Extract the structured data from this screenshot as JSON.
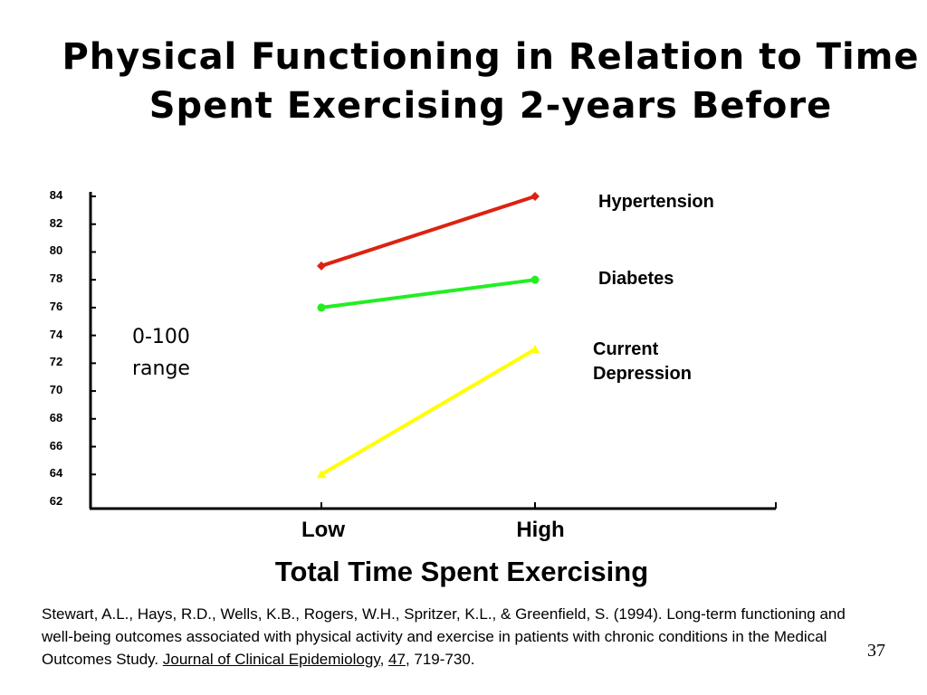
{
  "slide": {
    "title_line_1": "Physical Functioning in Relation to Time",
    "title_line_2": "Spent Exercising 2-years Before",
    "range_note_line_1": "0-100",
    "range_note_line_2": "range",
    "page_number": "37"
  },
  "citation": {
    "text_1": "Stewart, A.L., Hays, R.D., Wells, K.B., Rogers, W.H., Spritzer, K.L., & Greenfield, S.  (1994).  Long-term functioning and well-being outcomes associated with physical activity and exercise in patients with chronic conditions in the Medical Outcomes Study.  ",
    "journal": "Journal of Clinical Epidemiology",
    "sep_1": ", ",
    "volume": "47",
    "pages": ", 719-730."
  },
  "chart_data": {
    "type": "line",
    "title": "",
    "xlabel": "Total Time Spent Exercising",
    "ylabel": "",
    "categories": [
      "Low",
      "High"
    ],
    "ylim": [
      62,
      84
    ],
    "yticks": [
      "84",
      "82",
      "80",
      "78",
      "76",
      "74",
      "72",
      "70",
      "68",
      "66",
      "64",
      "62"
    ],
    "grid": false,
    "series": [
      {
        "name": "Hypertension",
        "values": [
          79,
          84
        ],
        "color": "#dd2211",
        "marker": "diamond"
      },
      {
        "name": "Diabetes",
        "values": [
          76,
          78
        ],
        "color": "#22ee22",
        "marker": "circle"
      },
      {
        "name": "Current Depression",
        "values": [
          64,
          73
        ],
        "color": "#ffff00",
        "marker": "triangle"
      }
    ],
    "series_labels": {
      "hypertension": "Hypertension",
      "diabetes": "Diabetes",
      "depression_line_1": "Current",
      "depression_line_2": "Depression"
    }
  }
}
